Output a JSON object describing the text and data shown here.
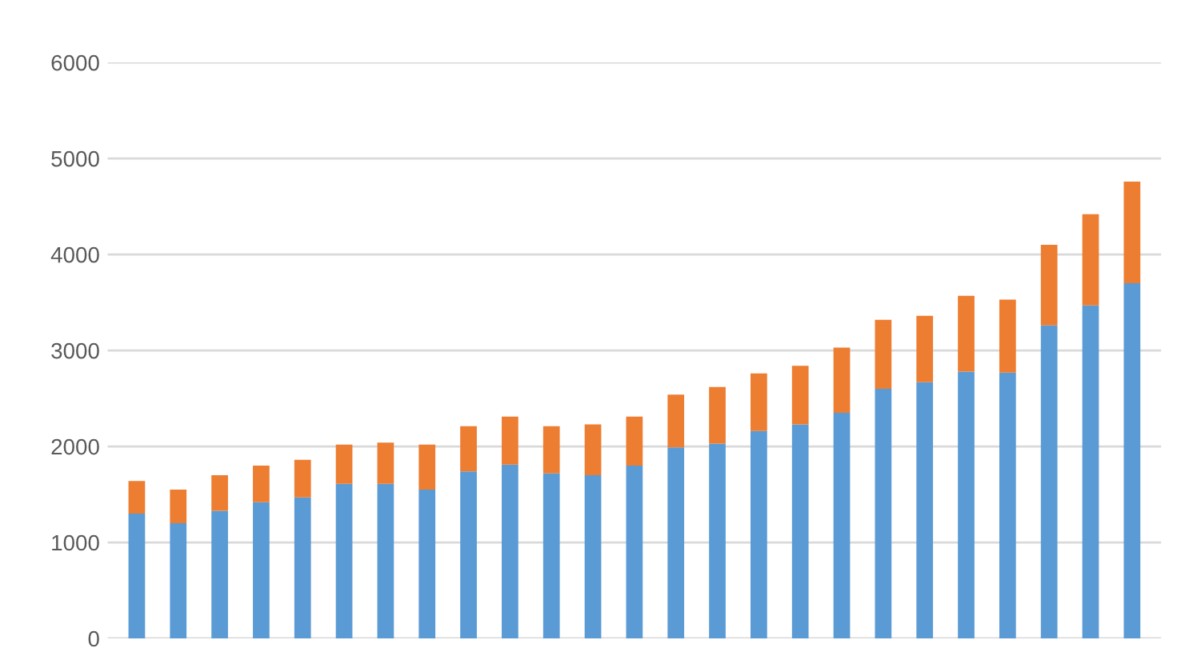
{
  "chart_data": {
    "type": "bar",
    "stacked": true,
    "categories": [
      null,
      null,
      null,
      null,
      null,
      null,
      null,
      null,
      null,
      null,
      null,
      null,
      null,
      null,
      null,
      null,
      null,
      null,
      null,
      null,
      null,
      null,
      null,
      null,
      null
    ],
    "series": [
      {
        "color": "#5b9bd5",
        "values": [
          1300,
          1200,
          1330,
          1420,
          1470,
          1610,
          1610,
          1550,
          1740,
          1810,
          1720,
          1700,
          1800,
          1990,
          2030,
          2160,
          2230,
          2350,
          2600,
          2670,
          2780,
          2770,
          3260,
          3470,
          3700
        ]
      },
      {
        "color": "#ed7d31",
        "values": [
          340,
          350,
          370,
          380,
          390,
          410,
          430,
          470,
          470,
          500,
          490,
          530,
          510,
          550,
          590,
          600,
          610,
          680,
          720,
          690,
          790,
          760,
          840,
          950,
          1060
        ]
      }
    ],
    "ylim": [
      0,
      6000
    ],
    "yticks": [
      0,
      1000,
      2000,
      3000,
      4000,
      5000,
      6000
    ],
    "grid": "y",
    "tick_labels": "y",
    "legend": false
  }
}
